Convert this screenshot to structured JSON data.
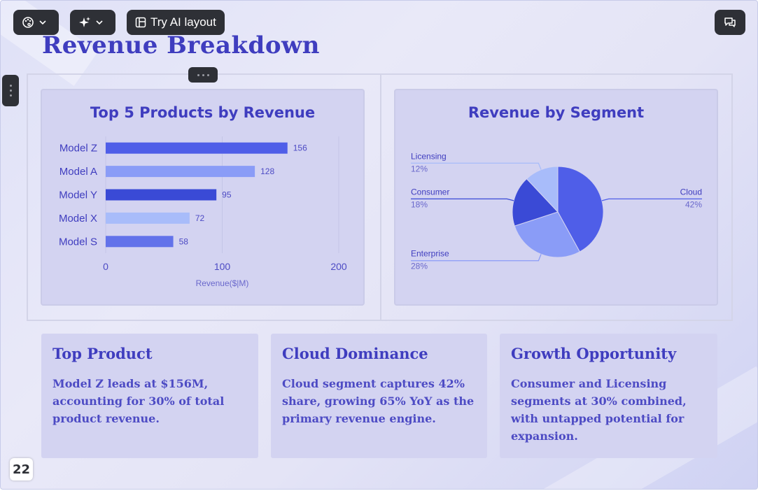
{
  "toolbar": {
    "theme_icon": "palette-icon",
    "ai_icon": "sparkle-icon",
    "try_ai_label": "Try AI layout",
    "comment_icon": "comment-icon"
  },
  "slide": {
    "title": "Revenue Breakdown",
    "page_number": "22"
  },
  "bar_chart": {
    "title": "Top 5 Products by Revenue"
  },
  "pie_chart": {
    "title": "Revenue by Segment"
  },
  "chart_data": [
    {
      "type": "bar",
      "orientation": "horizontal",
      "title": "Top 5 Products by Revenue",
      "categories": [
        "Model Z",
        "Model A",
        "Model Y",
        "Model X",
        "Model S"
      ],
      "values": [
        156,
        128,
        95,
        72,
        58
      ],
      "xlabel": "Revenue($|M)",
      "ylabel": "",
      "xlim": [
        0,
        200
      ],
      "xticks": [
        "0",
        "100",
        "200"
      ],
      "colors": [
        "#4f5ee8",
        "#8a9cf7",
        "#3a4ad6",
        "#a8bcfa",
        "#6272ea"
      ],
      "grid": true,
      "data_labels": true
    },
    {
      "type": "pie",
      "title": "Revenue by Segment",
      "slices": [
        {
          "label": "Cloud",
          "value": 42,
          "pct_label": "42%",
          "color": "#4f5ee8"
        },
        {
          "label": "Enterprise",
          "value": 28,
          "pct_label": "28%",
          "color": "#8a9cf7"
        },
        {
          "label": "Consumer",
          "value": 18,
          "pct_label": "18%",
          "color": "#3a4ad6"
        },
        {
          "label": "Licensing",
          "value": 12,
          "pct_label": "12%",
          "color": "#a8bcfa"
        }
      ]
    }
  ],
  "cards": [
    {
      "title": "Top Product",
      "body": "Model Z leads at $156M, accounting for 30% of total product revenue."
    },
    {
      "title": "Cloud Dominance",
      "body": "Cloud segment captures 42% share, growing 65% YoY as the primary revenue engine."
    },
    {
      "title": "Growth Opportunity",
      "body": "Consumer and Licensing segments at 30% combined, with untapped potential for expansion."
    }
  ]
}
